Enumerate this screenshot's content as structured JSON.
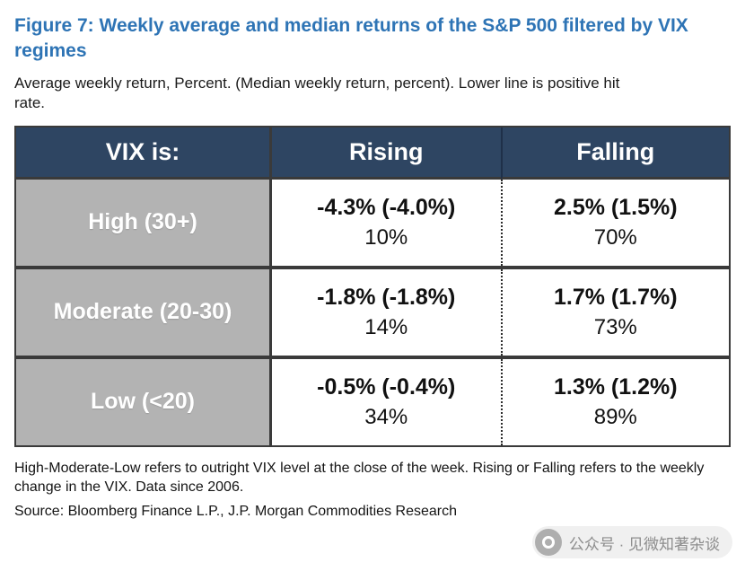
{
  "figure": {
    "title": "Figure 7: Weekly average and median returns of the S&P 500 filtered by VIX regimes",
    "subtitle": "Average weekly return, Percent. (Median weekly return, percent). Lower line is positive hit rate.",
    "footnote": "High-Moderate-Low refers to outright VIX level at the close of the week. Rising or Falling refers to the weekly change in the VIX. Data since 2006.",
    "source": "Source: Bloomberg Finance L.P., J.P. Morgan Commodities Research"
  },
  "table": {
    "corner_label": "VIX is:",
    "column_headers": [
      "Rising",
      "Falling"
    ],
    "rows": [
      {
        "label": "High (30+)",
        "rising": {
          "return": "-4.3% (-4.0%)",
          "hit_rate": "10%"
        },
        "falling": {
          "return": "2.5% (1.5%)",
          "hit_rate": "70%"
        }
      },
      {
        "label": "Moderate (20-30)",
        "rising": {
          "return": "-1.8% (-1.8%)",
          "hit_rate": "14%"
        },
        "falling": {
          "return": "1.7% (1.7%)",
          "hit_rate": "73%"
        }
      },
      {
        "label": "Low (<20)",
        "rising": {
          "return": "-0.5% (-0.4%)",
          "hit_rate": "34%"
        },
        "falling": {
          "return": "1.3% (1.2%)",
          "hit_rate": "89%"
        }
      }
    ]
  },
  "watermark": {
    "text": "公众号 · 见微知著杂谈",
    "icon": "camera-icon"
  },
  "colors": {
    "title_blue": "#2E74B5",
    "header_navy": "#2E4562",
    "row_label_gray": "#B3B3B3",
    "border_dark": "#3A3A3A",
    "text_black": "#1A1A1A",
    "watermark_gray": "#8C8C8C"
  }
}
